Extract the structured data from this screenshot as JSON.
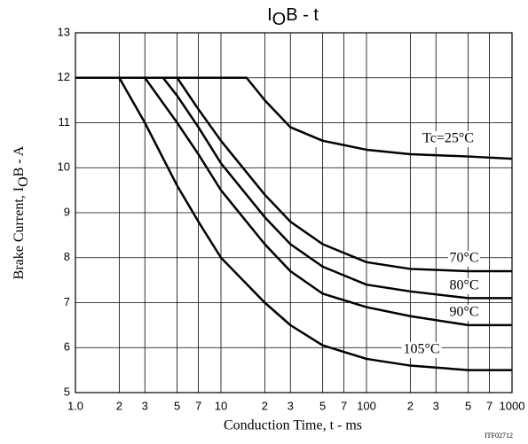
{
  "chart_data": {
    "type": "line",
    "title": {
      "main": "I",
      "sub": "O",
      "rest": "B - t"
    },
    "xlabel": "Conduction Time, t - ms",
    "ylabel": {
      "main": "Brake Current, I",
      "sub": "O",
      "rest": "B - A"
    },
    "note": "ITF02712",
    "xscale": "log",
    "xlim": [
      1,
      1000
    ],
    "ylim": [
      5,
      13
    ],
    "xticks": [
      {
        "value": 1,
        "label": "1.0"
      },
      2,
      3,
      5,
      7,
      10,
      {
        "value": 20,
        "label": "2"
      },
      {
        "value": 30,
        "label": "3"
      },
      {
        "value": 50,
        "label": "5"
      },
      {
        "value": 70,
        "label": "7"
      },
      100,
      {
        "value": 200,
        "label": "2"
      },
      {
        "value": 300,
        "label": "3"
      },
      {
        "value": 500,
        "label": "5"
      },
      {
        "value": 700,
        "label": "7"
      },
      1000
    ],
    "yticks": [
      5,
      6,
      7,
      8,
      9,
      10,
      11,
      12,
      13
    ],
    "grid": true,
    "series": [
      {
        "name": "Tc=25°C",
        "color": "#000",
        "x": [
          1,
          15,
          20,
          30,
          50,
          100,
          200,
          500,
          1000
        ],
        "values": [
          12,
          12,
          11.5,
          10.9,
          10.6,
          10.4,
          10.3,
          10.25,
          10.2
        ]
      },
      {
        "name": "70°C",
        "color": "#000",
        "x": [
          1,
          5,
          7,
          10,
          20,
          30,
          50,
          100,
          200,
          500,
          1000
        ],
        "values": [
          12,
          12,
          11.3,
          10.6,
          9.4,
          8.8,
          8.3,
          7.9,
          7.75,
          7.7,
          7.7
        ]
      },
      {
        "name": "80°C",
        "color": "#000",
        "x": [
          1,
          4,
          5,
          7,
          10,
          20,
          30,
          50,
          100,
          200,
          500,
          1000
        ],
        "values": [
          12,
          12,
          11.6,
          10.9,
          10.1,
          8.9,
          8.3,
          7.8,
          7.4,
          7.25,
          7.1,
          7.1
        ]
      },
      {
        "name": "90°C",
        "color": "#000",
        "x": [
          1,
          3,
          5,
          7,
          10,
          20,
          30,
          50,
          100,
          200,
          500,
          1000
        ],
        "values": [
          12,
          12,
          11.0,
          10.3,
          9.5,
          8.3,
          7.7,
          7.2,
          6.9,
          6.7,
          6.5,
          6.5
        ]
      },
      {
        "name": "105°C",
        "color": "#000",
        "x": [
          1,
          2,
          3,
          5,
          7,
          10,
          20,
          30,
          50,
          100,
          200,
          500,
          1000
        ],
        "values": [
          12,
          12,
          11.0,
          9.6,
          8.8,
          8.0,
          7.0,
          6.5,
          6.05,
          5.75,
          5.6,
          5.5,
          5.5
        ]
      }
    ]
  }
}
